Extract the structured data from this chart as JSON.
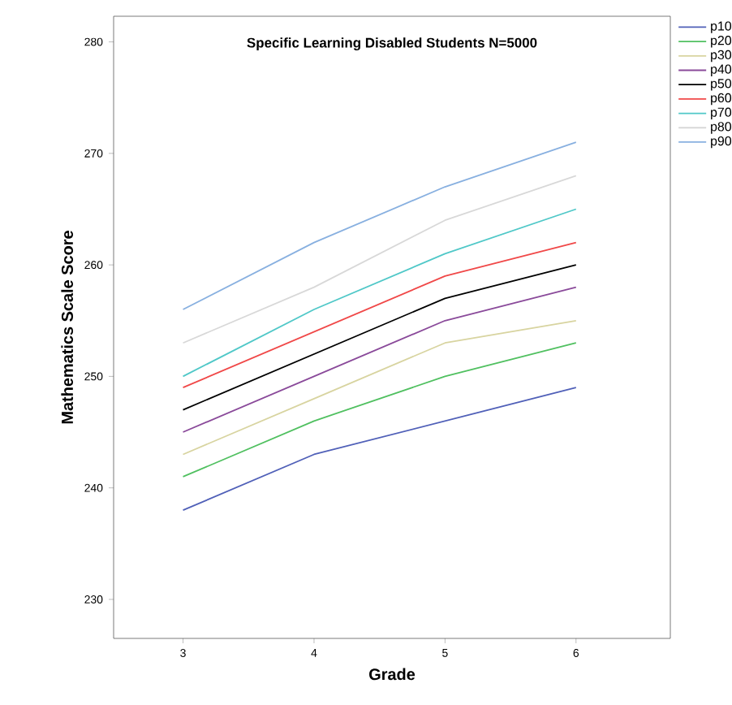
{
  "chart_data": {
    "type": "line",
    "title": "Specific Learning Disabled Students N=5000",
    "xlabel": "Grade",
    "ylabel": "Mathematics Scale Score",
    "x": [
      3,
      4,
      5,
      6
    ],
    "xlim": [
      2.47,
      6.72
    ],
    "xticks": [
      3,
      4,
      5,
      6
    ],
    "ylim": [
      226.5,
      282.3
    ],
    "yticks": [
      230,
      240,
      250,
      260,
      270,
      280
    ],
    "legend": "right",
    "grid": false,
    "marker": "none",
    "line_style": "solid",
    "series": [
      {
        "name": "p10",
        "color": "#5060b8",
        "values": [
          238,
          243,
          246,
          249
        ]
      },
      {
        "name": "p20",
        "color": "#50c060",
        "values": [
          241,
          246,
          250,
          253
        ]
      },
      {
        "name": "p30",
        "color": "#d8d4a0",
        "values": [
          243,
          248,
          253,
          255
        ]
      },
      {
        "name": "p40",
        "color": "#8a4a9a",
        "values": [
          245,
          250,
          255,
          258
        ]
      },
      {
        "name": "p50",
        "color": "#000000",
        "values": [
          247,
          252,
          257,
          260
        ]
      },
      {
        "name": "p60",
        "color": "#f04848",
        "values": [
          249,
          254,
          259,
          262
        ]
      },
      {
        "name": "p70",
        "color": "#50c8c8",
        "values": [
          250,
          256,
          261,
          265
        ]
      },
      {
        "name": "p80",
        "color": "#d8d8d8",
        "values": [
          253,
          258,
          264,
          268
        ]
      },
      {
        "name": "p90",
        "color": "#88b0e0",
        "values": [
          256,
          262,
          267,
          271
        ]
      }
    ]
  }
}
